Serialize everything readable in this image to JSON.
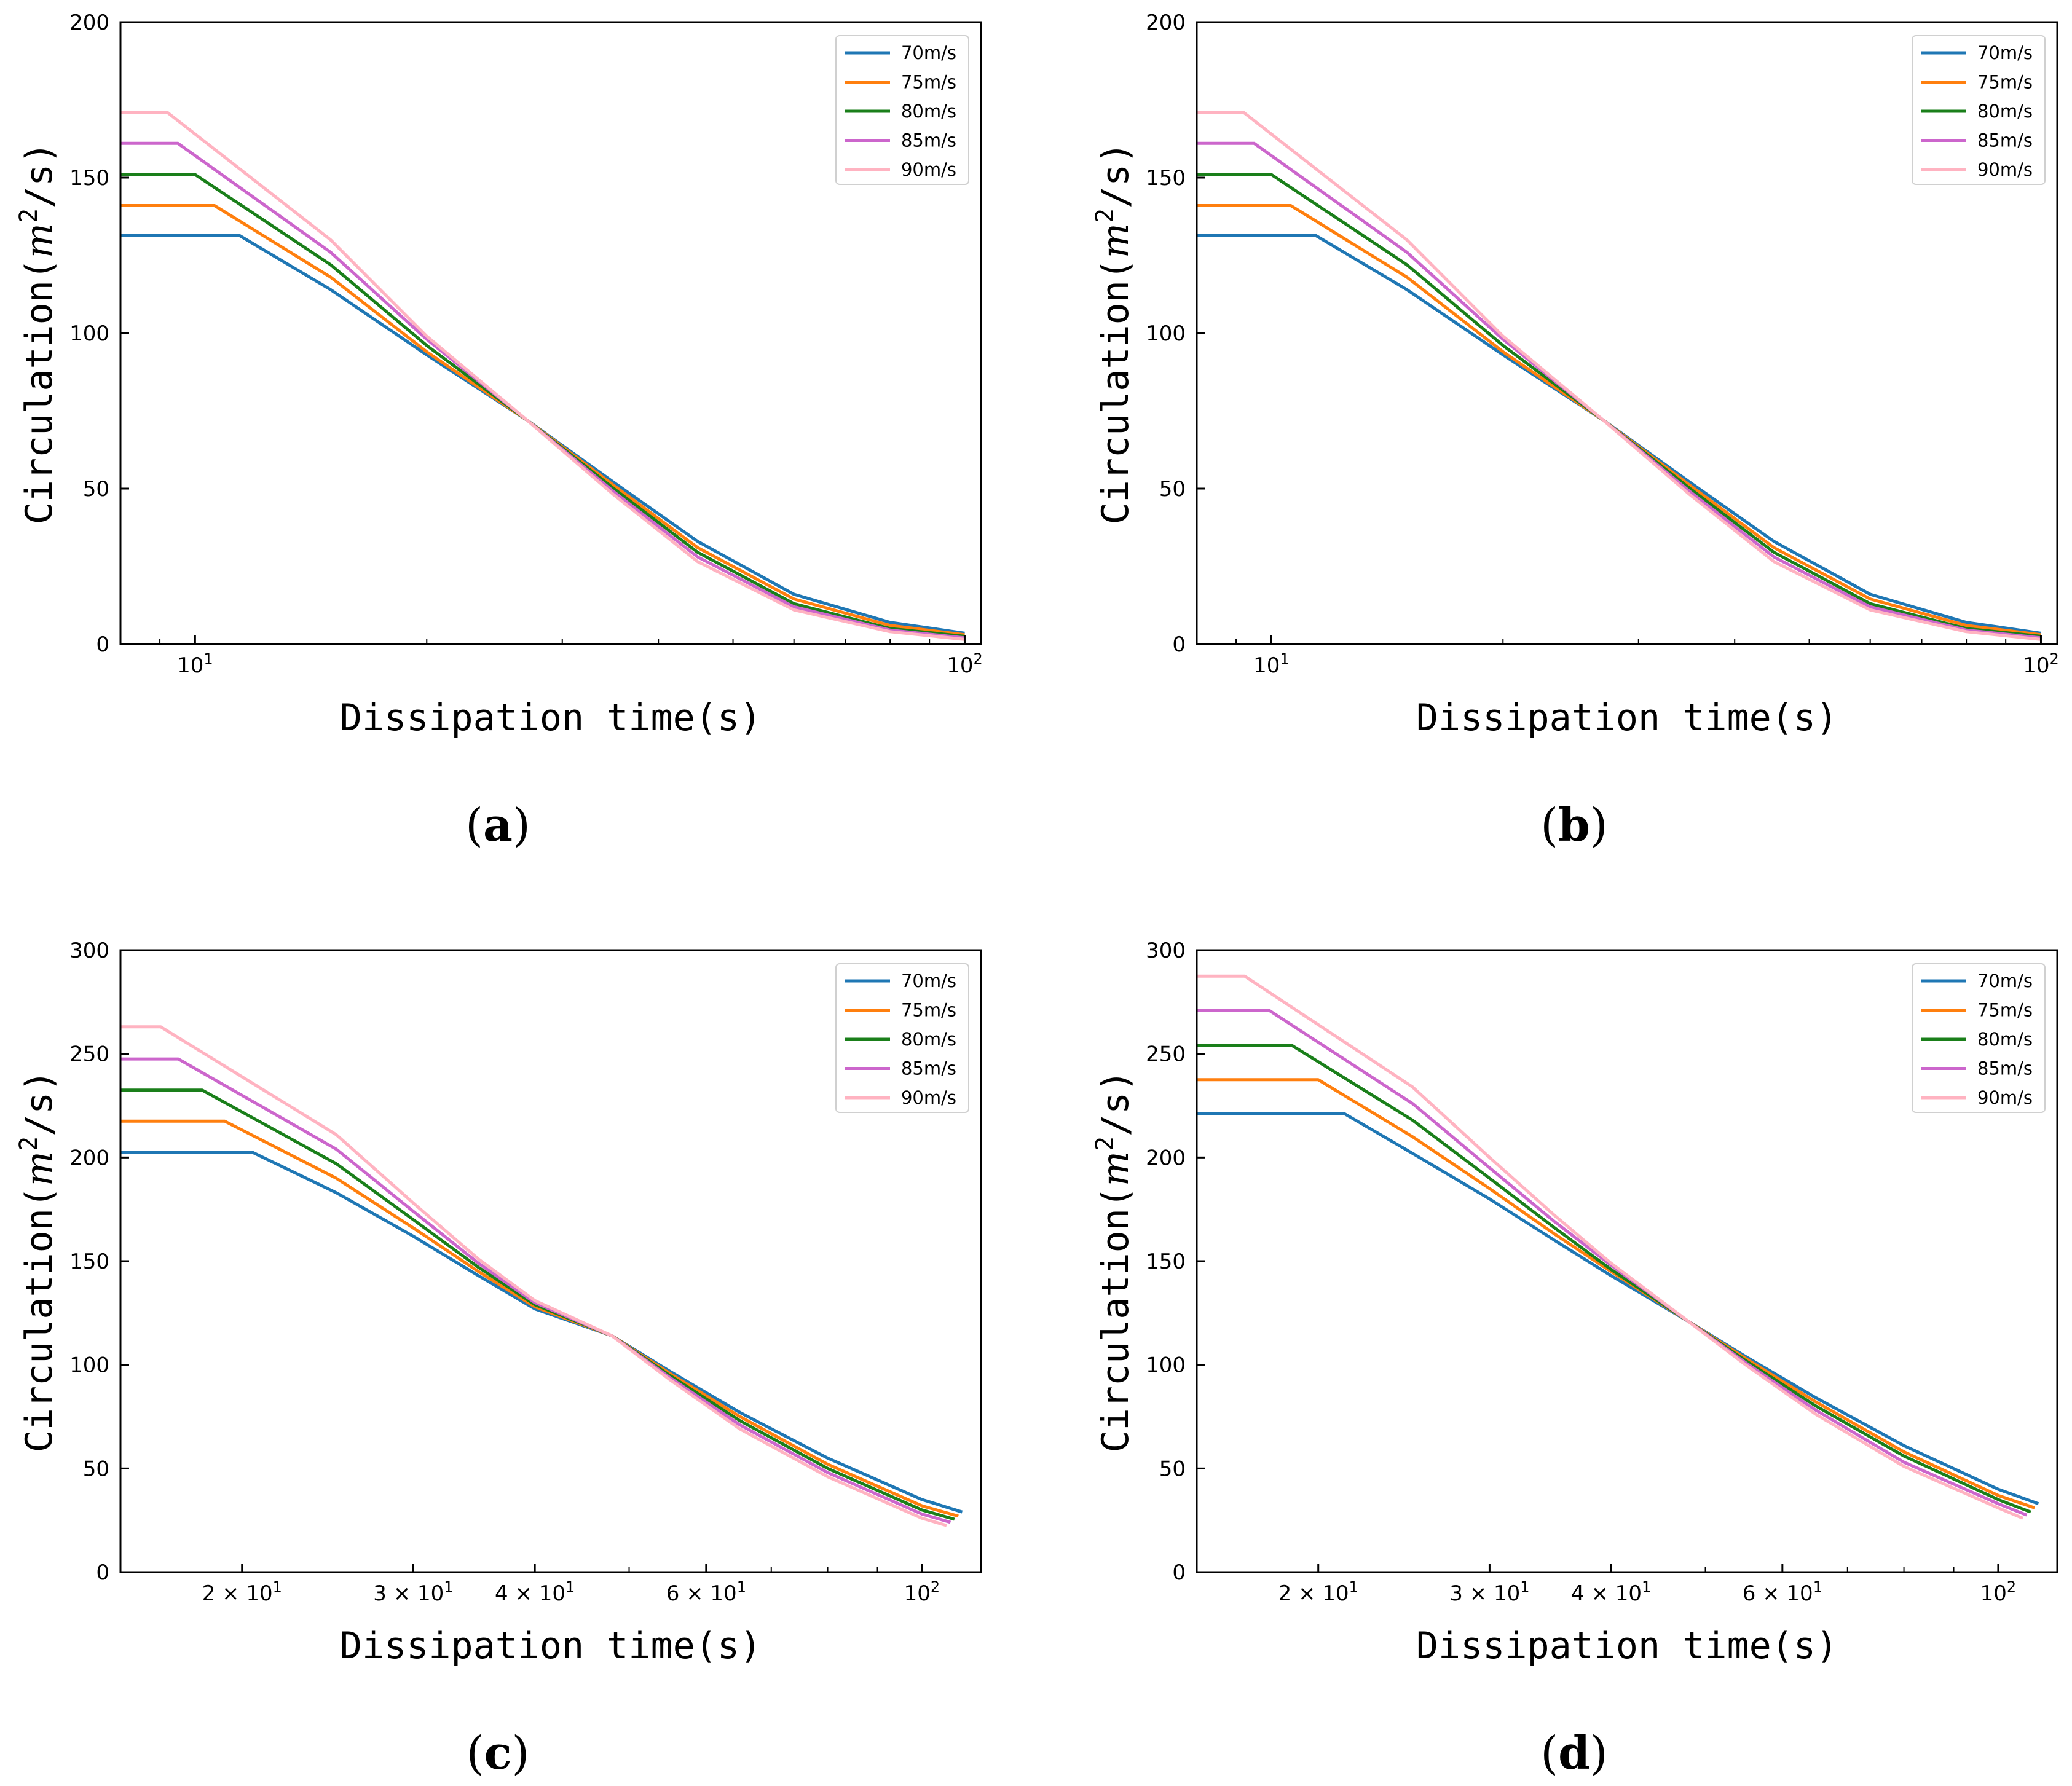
{
  "colors": {
    "70m/s": "#1f77b4",
    "75m/s": "#ff7f0e",
    "80m/s": "#1a7f1a",
    "85m/s": "#cc66cc",
    "90m/s": "#ffb3c1"
  },
  "chart_data": [
    {
      "type": "line",
      "panel": "a",
      "caption_open": "(",
      "caption_letter": "a",
      "caption_close": ")",
      "xlabel": "Dissipation time(s)",
      "ylabel_main": "Circulation(",
      "ylabel_m": "m",
      "ylabel_sup": "2",
      "ylabel_tail": "/s)",
      "xscale": "log",
      "xlim": [
        8,
        105
      ],
      "ylim": [
        0,
        200
      ],
      "yticks": [
        0,
        50,
        100,
        150,
        200
      ],
      "ytick_labels": [
        "0",
        "50",
        "100",
        "150",
        "200"
      ],
      "xticks_major": [
        10,
        100
      ],
      "xtick_labels": [
        {
          "base": "10",
          "exp": "1"
        },
        {
          "base": "10",
          "exp": "2"
        }
      ],
      "legend": [
        "70m/s",
        "75m/s",
        "80m/s",
        "85m/s",
        "90m/s"
      ],
      "legend_position": "top-right",
      "series": [
        {
          "name": "70m/s",
          "plateau": 131.5,
          "t_end_plateau": 11.4,
          "x": [
            8,
            11.4,
            15,
            20,
            27,
            35,
            45,
            60,
            80,
            100
          ],
          "y": [
            131.5,
            131.5,
            114,
            93,
            72,
            52,
            33,
            16,
            7,
            3.5
          ]
        },
        {
          "name": "75m/s",
          "plateau": 141,
          "t_end_plateau": 10.6,
          "x": [
            8,
            10.6,
            15,
            20,
            27,
            35,
            45,
            60,
            80,
            100
          ],
          "y": [
            141,
            141,
            118,
            94,
            72,
            51,
            31,
            14.5,
            6,
            3
          ]
        },
        {
          "name": "80m/s",
          "plateau": 151,
          "t_end_plateau": 10.0,
          "x": [
            8,
            10.0,
            15,
            20,
            27,
            35,
            45,
            60,
            80,
            100
          ],
          "y": [
            151,
            151,
            122,
            96,
            72,
            50,
            29.5,
            13,
            5,
            2.5
          ]
        },
        {
          "name": "85m/s",
          "plateau": 161,
          "t_end_plateau": 9.5,
          "x": [
            8,
            9.5,
            15,
            20,
            27,
            35,
            45,
            60,
            80,
            100
          ],
          "y": [
            161,
            161,
            126,
            98,
            72,
            49,
            28,
            12,
            4.5,
            2
          ]
        },
        {
          "name": "90m/s",
          "plateau": 171,
          "t_end_plateau": 9.2,
          "x": [
            8,
            9.2,
            15,
            20,
            27,
            35,
            45,
            60,
            80,
            100
          ],
          "y": [
            171,
            171,
            130,
            99,
            72,
            48,
            26.5,
            11,
            4,
            1.5
          ]
        }
      ]
    },
    {
      "type": "line",
      "panel": "b",
      "caption_open": "(",
      "caption_letter": "b",
      "caption_close": ")",
      "xlabel": "Dissipation time(s)",
      "ylabel_main": "Circulation(",
      "ylabel_m": "m",
      "ylabel_sup": "2",
      "ylabel_tail": "/s)",
      "xscale": "log",
      "xlim": [
        8,
        105
      ],
      "ylim": [
        0,
        200
      ],
      "yticks": [
        0,
        50,
        100,
        150,
        200
      ],
      "ytick_labels": [
        "0",
        "50",
        "100",
        "150",
        "200"
      ],
      "xticks_major": [
        10,
        100
      ],
      "xtick_labels": [
        {
          "base": "10",
          "exp": "1"
        },
        {
          "base": "10",
          "exp": "2"
        }
      ],
      "legend": [
        "70m/s",
        "75m/s",
        "80m/s",
        "85m/s",
        "90m/s"
      ],
      "legend_position": "top-right",
      "series": [
        {
          "name": "70m/s",
          "plateau": 131.5,
          "t_end_plateau": 11.4,
          "x": [
            8,
            11.4,
            15,
            20,
            27,
            35,
            45,
            60,
            80,
            100
          ],
          "y": [
            131.5,
            131.5,
            114,
            93,
            72,
            52,
            33,
            16,
            7,
            3.5
          ]
        },
        {
          "name": "75m/s",
          "plateau": 141,
          "t_end_plateau": 10.6,
          "x": [
            8,
            10.6,
            15,
            20,
            27,
            35,
            45,
            60,
            80,
            100
          ],
          "y": [
            141,
            141,
            118,
            94,
            72,
            51,
            31,
            14.5,
            6,
            3
          ]
        },
        {
          "name": "80m/s",
          "plateau": 151,
          "t_end_plateau": 10.0,
          "x": [
            8,
            10.0,
            15,
            20,
            27,
            35,
            45,
            60,
            80,
            100
          ],
          "y": [
            151,
            151,
            122,
            96,
            72,
            50,
            29.5,
            13,
            5,
            2.5
          ]
        },
        {
          "name": "85m/s",
          "plateau": 161,
          "t_end_plateau": 9.5,
          "x": [
            8,
            9.5,
            15,
            20,
            27,
            35,
            45,
            60,
            80,
            100
          ],
          "y": [
            161,
            161,
            126,
            98,
            72,
            49,
            28,
            12,
            4.5,
            2
          ]
        },
        {
          "name": "90m/s",
          "plateau": 171,
          "t_end_plateau": 9.2,
          "x": [
            8,
            9.2,
            15,
            20,
            27,
            35,
            45,
            60,
            80,
            100
          ],
          "y": [
            171,
            171,
            130,
            99,
            72,
            48,
            26.5,
            11,
            4,
            1.5
          ]
        }
      ]
    },
    {
      "type": "line",
      "panel": "c",
      "caption_open": "(",
      "caption_letter": "c",
      "caption_close": ")",
      "xlabel": "Dissipation time(s)",
      "ylabel_main": "Circulation(",
      "ylabel_m": "m",
      "ylabel_sup": "2",
      "ylabel_tail": "/s)",
      "xscale": "log",
      "xlim": [
        15,
        115
      ],
      "ylim": [
        0,
        300
      ],
      "yticks": [
        0,
        50,
        100,
        150,
        200,
        250,
        300
      ],
      "ytick_labels": [
        "0",
        "50",
        "100",
        "150",
        "200",
        "250",
        "300"
      ],
      "xticks_major": [
        20,
        30,
        40,
        60,
        100
      ],
      "xtick_labels": [
        {
          "base": "2 × 10",
          "exp": "1"
        },
        {
          "base": "3 × 10",
          "exp": "1"
        },
        {
          "base": "4 × 10",
          "exp": "1"
        },
        {
          "base": "6 × 10",
          "exp": "1"
        },
        {
          "base": "10",
          "exp": "2"
        }
      ],
      "legend": [
        "70m/s",
        "75m/s",
        "80m/s",
        "85m/s",
        "90m/s"
      ],
      "legend_position": "top-right",
      "series": [
        {
          "name": "70m/s",
          "plateau": 202.5,
          "t_end_plateau": 20.5,
          "x": [
            15,
            20.5,
            25,
            30,
            35,
            40,
            48,
            55,
            65,
            80,
            100,
            110
          ],
          "y": [
            202.5,
            202.5,
            183,
            162,
            143,
            127,
            114,
            97,
            77,
            55,
            35,
            29
          ]
        },
        {
          "name": "75m/s",
          "plateau": 217.5,
          "t_end_plateau": 19.2,
          "x": [
            15,
            19.2,
            25,
            30,
            35,
            40,
            48,
            55,
            65,
            80,
            100,
            109
          ],
          "y": [
            217.5,
            217.5,
            190,
            166,
            145,
            128,
            114,
            96,
            75,
            52,
            32,
            27
          ]
        },
        {
          "name": "80m/s",
          "plateau": 232.5,
          "t_end_plateau": 18.2,
          "x": [
            15,
            18.2,
            25,
            30,
            35,
            40,
            48,
            55,
            65,
            80,
            100,
            108
          ],
          "y": [
            232.5,
            232.5,
            197,
            170,
            147,
            129,
            114,
            95,
            73,
            50,
            30,
            25.5
          ]
        },
        {
          "name": "85m/s",
          "plateau": 247.5,
          "t_end_plateau": 17.2,
          "x": [
            15,
            17.2,
            25,
            30,
            35,
            40,
            48,
            55,
            65,
            80,
            100,
            107
          ],
          "y": [
            247.5,
            247.5,
            204,
            174,
            149,
            130,
            114,
            94,
            71,
            48,
            28,
            24
          ]
        },
        {
          "name": "90m/s",
          "plateau": 263,
          "t_end_plateau": 16.5,
          "x": [
            15,
            16.5,
            25,
            30,
            35,
            40,
            48,
            55,
            65,
            80,
            100,
            106
          ],
          "y": [
            263,
            263,
            211,
            178,
            151,
            131,
            114,
            93,
            69,
            46,
            26,
            22.5
          ]
        }
      ]
    },
    {
      "type": "line",
      "panel": "d",
      "caption_open": "(",
      "caption_letter": "d",
      "caption_close": ")",
      "xlabel": "Dissipation time(s)",
      "ylabel_main": "Circulation(",
      "ylabel_m": "m",
      "ylabel_sup": "2",
      "ylabel_tail": "/s)",
      "xscale": "log",
      "xlim": [
        15,
        115
      ],
      "ylim": [
        0,
        300
      ],
      "yticks": [
        0,
        50,
        100,
        150,
        200,
        250,
        300
      ],
      "ytick_labels": [
        "0",
        "50",
        "100",
        "150",
        "200",
        "250",
        "300"
      ],
      "xticks_major": [
        20,
        30,
        40,
        60,
        100
      ],
      "xtick_labels": [
        {
          "base": "2 × 10",
          "exp": "1"
        },
        {
          "base": "3 × 10",
          "exp": "1"
        },
        {
          "base": "4 × 10",
          "exp": "1"
        },
        {
          "base": "6 × 10",
          "exp": "1"
        },
        {
          "base": "10",
          "exp": "2"
        }
      ],
      "legend": [
        "70m/s",
        "75m/s",
        "80m/s",
        "85m/s",
        "90m/s"
      ],
      "legend_position": "top-right",
      "series": [
        {
          "name": "70m/s",
          "plateau": 221,
          "t_end_plateau": 21.3,
          "x": [
            15,
            21.3,
            25,
            30,
            35,
            40,
            48,
            55,
            65,
            80,
            100,
            110
          ],
          "y": [
            221,
            221,
            202,
            180,
            160,
            143,
            121,
            104,
            84,
            61,
            40,
            33
          ]
        },
        {
          "name": "75m/s",
          "plateau": 237.5,
          "t_end_plateau": 20.0,
          "x": [
            15,
            20.0,
            25,
            30,
            35,
            40,
            48,
            55,
            65,
            80,
            100,
            109
          ],
          "y": [
            237.5,
            237.5,
            210,
            185,
            163,
            145,
            121,
            103,
            82,
            58,
            37,
            31
          ]
        },
        {
          "name": "80m/s",
          "plateau": 254,
          "t_end_plateau": 18.8,
          "x": [
            15,
            18.8,
            25,
            30,
            35,
            40,
            48,
            55,
            65,
            80,
            100,
            108
          ],
          "y": [
            254,
            254,
            218,
            190,
            166,
            146,
            121,
            102,
            80,
            56,
            35,
            29
          ]
        },
        {
          "name": "85m/s",
          "plateau": 271,
          "t_end_plateau": 17.8,
          "x": [
            15,
            17.8,
            25,
            30,
            35,
            40,
            48,
            55,
            65,
            80,
            100,
            107
          ],
          "y": [
            271,
            271,
            226,
            195,
            169,
            148,
            121,
            101,
            78,
            53,
            33,
            27.5
          ]
        },
        {
          "name": "90m/s",
          "plateau": 287.5,
          "t_end_plateau": 16.8,
          "x": [
            15,
            16.8,
            25,
            30,
            35,
            40,
            48,
            55,
            65,
            80,
            100,
            106
          ],
          "y": [
            287.5,
            287.5,
            234,
            200,
            172,
            149,
            121,
            100,
            76,
            51,
            31,
            26
          ]
        }
      ]
    }
  ]
}
